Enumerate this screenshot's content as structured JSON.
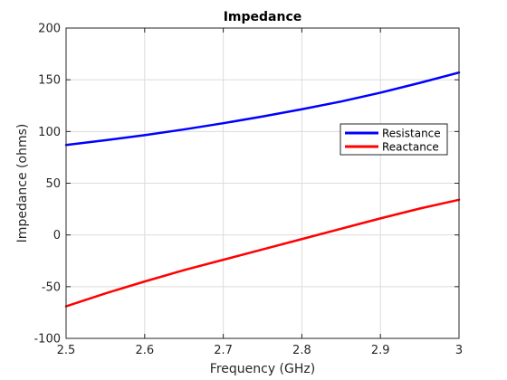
{
  "chart_data": {
    "type": "line",
    "title": "Impedance",
    "xlabel": "Frequency (GHz)",
    "ylabel": "Impedance (ohms)",
    "xlim": [
      2.5,
      3.0
    ],
    "ylim": [
      -100,
      200
    ],
    "xticks": [
      "2.5",
      "2.6",
      "2.7",
      "2.8",
      "2.9",
      "3"
    ],
    "yticks": [
      "-100",
      "-50",
      "0",
      "50",
      "100",
      "150",
      "200"
    ],
    "grid": true,
    "legend_position": "right",
    "x": [
      2.5,
      2.55,
      2.6,
      2.65,
      2.7,
      2.75,
      2.8,
      2.85,
      2.9,
      2.95,
      3.0
    ],
    "series": [
      {
        "name": "Resistance",
        "color": "#0000ff",
        "values": [
          87,
          91.5,
          96.5,
          102,
          108,
          114.5,
          121.5,
          129,
          137.5,
          147,
          157
        ]
      },
      {
        "name": "Reactance",
        "color": "#ff0000",
        "values": [
          -69,
          -56.5,
          -45,
          -34,
          -24,
          -14,
          -4,
          6,
          16,
          25.5,
          34
        ]
      }
    ]
  }
}
